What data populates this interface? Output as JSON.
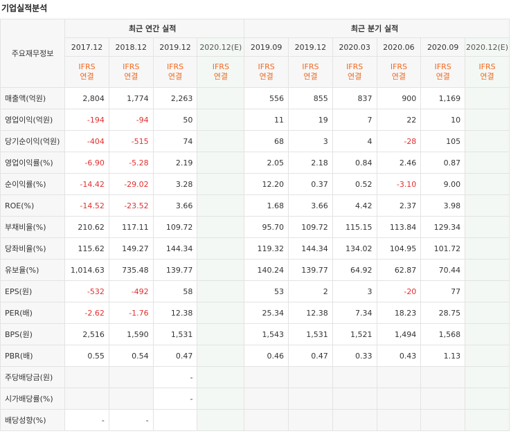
{
  "title": "기업실적분석",
  "header": {
    "row_label": "주요재무정보",
    "annual_group": "최근 연간 실적",
    "quarterly_group": "최근 분기 실적",
    "annual_periods": [
      "2017.12",
      "2018.12",
      "2019.12",
      "2020.12(E)"
    ],
    "quarterly_periods": [
      "2019.09",
      "2019.12",
      "2020.03",
      "2020.06",
      "2020.09",
      "2020.12(E)"
    ],
    "ifrs_top": "IFRS",
    "ifrs_bottom": "연결"
  },
  "rows": [
    {
      "label": "매출액(억원)",
      "values": [
        "2,804",
        "1,774",
        "2,263",
        "",
        "556",
        "855",
        "837",
        "900",
        "1,169",
        ""
      ]
    },
    {
      "label": "영업이익(억원)",
      "values": [
        "-194",
        "-94",
        "50",
        "",
        "11",
        "19",
        "7",
        "22",
        "10",
        ""
      ]
    },
    {
      "label": "당기순이익(억원)",
      "values": [
        "-404",
        "-515",
        "74",
        "",
        "68",
        "3",
        "4",
        "-28",
        "105",
        ""
      ]
    },
    {
      "label": "영업이익률(%)",
      "values": [
        "-6.90",
        "-5.28",
        "2.19",
        "",
        "2.05",
        "2.18",
        "0.84",
        "2.46",
        "0.87",
        ""
      ]
    },
    {
      "label": "순이익률(%)",
      "values": [
        "-14.42",
        "-29.02",
        "3.28",
        "",
        "12.20",
        "0.37",
        "0.52",
        "-3.10",
        "9.00",
        ""
      ]
    },
    {
      "label": "ROE(%)",
      "values": [
        "-14.52",
        "-23.52",
        "3.66",
        "",
        "1.68",
        "3.66",
        "4.42",
        "2.37",
        "3.98",
        ""
      ]
    },
    {
      "label": "부채비율(%)",
      "values": [
        "210.62",
        "117.11",
        "109.72",
        "",
        "95.70",
        "109.72",
        "115.15",
        "113.84",
        "129.34",
        ""
      ]
    },
    {
      "label": "당좌비율(%)",
      "values": [
        "115.62",
        "149.27",
        "144.34",
        "",
        "119.32",
        "144.34",
        "134.02",
        "104.95",
        "101.72",
        ""
      ]
    },
    {
      "label": "유보율(%)",
      "values": [
        "1,014.63",
        "735.48",
        "139.77",
        "",
        "140.24",
        "139.77",
        "64.92",
        "62.87",
        "70.44",
        ""
      ]
    },
    {
      "label": "EPS(원)",
      "values": [
        "-532",
        "-492",
        "58",
        "",
        "53",
        "2",
        "3",
        "-20",
        "77",
        ""
      ]
    },
    {
      "label": "PER(배)",
      "values": [
        "-2.62",
        "-1.76",
        "12.38",
        "",
        "25.34",
        "12.38",
        "7.34",
        "18.23",
        "28.75",
        ""
      ]
    },
    {
      "label": "BPS(원)",
      "values": [
        "2,516",
        "1,590",
        "1,531",
        "",
        "1,543",
        "1,531",
        "1,521",
        "1,494",
        "1,568",
        ""
      ]
    },
    {
      "label": "PBR(배)",
      "values": [
        "0.55",
        "0.54",
        "0.47",
        "",
        "0.46",
        "0.47",
        "0.33",
        "0.43",
        "1.13",
        ""
      ]
    },
    {
      "label": "주당배당금(원)",
      "values": [
        "",
        "",
        "-",
        "",
        "",
        "",
        "",
        "",
        "",
        ""
      ]
    },
    {
      "label": "시가배당률(%)",
      "values": [
        "",
        "",
        "-",
        "",
        "",
        "",
        "",
        "",
        "",
        ""
      ]
    },
    {
      "label": "배당성향(%)",
      "values": [
        "-",
        "-",
        "",
        "",
        "",
        "",
        "",
        "",
        "",
        ""
      ]
    }
  ]
}
